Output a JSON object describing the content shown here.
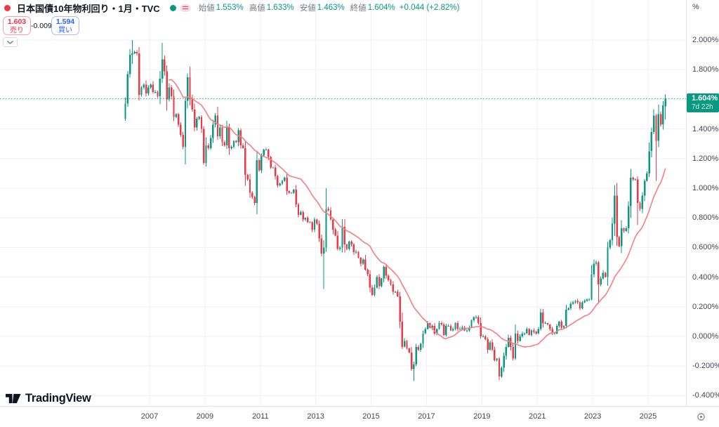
{
  "header": {
    "status_dot_color": "#f23645",
    "title": "日本国債10年物利回り・1月・TVC",
    "series_dot_color": "#089981",
    "ohlc": {
      "open_label": "始値",
      "open_value": "1.553%",
      "high_label": "高値",
      "high_value": "1.633%",
      "low_label": "安値",
      "low_value": "1.463%",
      "close_label": "終値",
      "close_value": "1.604%",
      "change_value": "+0.044 (+2.82%)"
    }
  },
  "trade_panel": {
    "sell_price": "1.603",
    "sell_label": "売り",
    "spread": "-0.009",
    "buy_price": "1.594",
    "buy_label": "買い"
  },
  "price_axis": {
    "unit": "%",
    "ticks": [
      "2.000%",
      "1.800%",
      "1.400%",
      "1.200%",
      "1.000%",
      "0.800%",
      "0.600%",
      "0.400%",
      "0.200%",
      "0.000%",
      "-0.200%",
      "-0.400%"
    ],
    "last_price": {
      "text": "1.604%",
      "countdown": "7d 22h",
      "bg": "#089981"
    }
  },
  "time_axis": {
    "years": [
      "2007",
      "2009",
      "2011",
      "2013",
      "2015",
      "2017",
      "2019",
      "2021",
      "2023",
      "2025"
    ]
  },
  "logo_text": "TradingView",
  "chart_data": {
    "type": "candlestick",
    "title": "日本国債10年物利回り・1月・TVC",
    "interval": "1 month",
    "unit": "%",
    "y_ticks": [
      2.0,
      1.8,
      1.6,
      1.4,
      1.2,
      1.0,
      0.8,
      0.6,
      0.4,
      0.2,
      0.0,
      -0.2,
      -0.4
    ],
    "x_tick_years": [
      2007,
      2009,
      2011,
      2013,
      2015,
      2017,
      2019,
      2021,
      2023,
      2025
    ],
    "current_price": 1.604,
    "up_color": "#089981",
    "down_color": "#f23645",
    "grid_color": "#f0f2f8",
    "price_line_color": "#089981",
    "ma": {
      "type": "SMA",
      "length": 20,
      "color": "#f77c83"
    },
    "start_month": "2006-02",
    "first_open": 1.47,
    "closes_by_year": {
      "2006": [
        1.57,
        1.77,
        1.9,
        1.91,
        1.92,
        1.91,
        1.63,
        1.68,
        1.7,
        1.64,
        1.68
      ],
      "2007": [
        1.7,
        1.65,
        1.65,
        1.62,
        1.74,
        1.87,
        1.79,
        1.6,
        1.68,
        1.62,
        1.48,
        1.5
      ],
      "2008": [
        1.43,
        1.36,
        1.28,
        1.59,
        1.75,
        1.6,
        1.53,
        1.41,
        1.47,
        1.48,
        1.4,
        1.17
      ],
      "2009": [
        1.29,
        1.27,
        1.34,
        1.43,
        1.49,
        1.35,
        1.41,
        1.31,
        1.29,
        1.41,
        1.27,
        1.28
      ],
      "2010": [
        1.32,
        1.31,
        1.39,
        1.29,
        1.27,
        1.09,
        1.06,
        0.97,
        0.94,
        0.9,
        1.19,
        1.12
      ],
      "2011": [
        1.22,
        1.26,
        1.26,
        1.21,
        1.14,
        1.14,
        1.08,
        1.02,
        1.03,
        1.05,
        1.07,
        0.98
      ],
      "2012": [
        0.97,
        0.97,
        0.99,
        0.89,
        0.82,
        0.84,
        0.79,
        0.8,
        0.77,
        0.77,
        0.72,
        0.79
      ],
      "2013": [
        0.76,
        0.66,
        0.56,
        0.6,
        0.86,
        0.85,
        0.79,
        0.72,
        0.68,
        0.59,
        0.6,
        0.74
      ],
      "2014": [
        0.62,
        0.59,
        0.64,
        0.62,
        0.57,
        0.57,
        0.53,
        0.49,
        0.52,
        0.45,
        0.42,
        0.33
      ],
      "2015": [
        0.28,
        0.33,
        0.4,
        0.34,
        0.39,
        0.47,
        0.41,
        0.38,
        0.35,
        0.3,
        0.3,
        0.27
      ],
      "2016": [
        0.1,
        -0.07,
        -0.03,
        -0.08,
        -0.11,
        -0.22,
        -0.19,
        -0.07,
        -0.09,
        -0.05,
        0.02,
        0.05
      ],
      "2017": [
        0.09,
        0.06,
        0.07,
        0.02,
        0.05,
        0.09,
        0.08,
        0.01,
        0.07,
        0.07,
        0.04,
        0.05
      ],
      "2018": [
        0.09,
        0.05,
        0.05,
        0.06,
        0.04,
        0.04,
        0.06,
        0.11,
        0.13,
        0.13,
        0.09,
        0.0
      ],
      "2019": [
        0.0,
        -0.02,
        -0.09,
        -0.04,
        -0.09,
        -0.16,
        -0.15,
        -0.27,
        -0.21,
        -0.13,
        -0.07,
        -0.01
      ],
      "2020": [
        -0.07,
        -0.15,
        0.02,
        -0.03,
        0.0,
        0.02,
        0.02,
        0.05,
        0.01,
        0.04,
        0.03,
        0.02
      ],
      "2021": [
        0.05,
        0.16,
        0.09,
        0.09,
        0.08,
        0.05,
        0.02,
        0.02,
        0.07,
        0.1,
        0.06,
        0.07
      ],
      "2022": [
        0.18,
        0.19,
        0.22,
        0.23,
        0.24,
        0.23,
        0.19,
        0.23,
        0.24,
        0.25,
        0.25,
        0.42
      ],
      "2023": [
        0.49,
        0.5,
        0.35,
        0.39,
        0.43,
        0.4,
        0.6,
        0.65,
        0.76,
        0.95,
        0.67,
        0.61
      ],
      "2024": [
        0.73,
        0.71,
        0.73,
        0.88,
        1.07,
        1.06,
        1.06,
        0.9,
        0.86,
        0.95,
        1.05,
        1.1
      ],
      "2025": [
        1.25,
        1.38,
        1.49,
        1.32,
        1.5,
        1.43,
        1.56,
        1.604
      ]
    },
    "ohlc_overrides": {
      "2006-05": [
        1.9,
        2.0,
        1.84,
        1.91
      ],
      "2007-06": [
        1.74,
        1.98,
        1.71,
        1.87
      ],
      "2008-06": [
        1.75,
        1.82,
        1.56,
        1.6
      ],
      "2008-12": [
        1.4,
        1.42,
        1.16,
        1.17
      ],
      "2013-04": [
        0.56,
        0.65,
        0.32,
        0.6
      ],
      "2013-05": [
        0.6,
        1.0,
        0.57,
        0.86
      ],
      "2016-07": [
        -0.22,
        -0.17,
        -0.3,
        -0.19
      ],
      "2019-08": [
        -0.15,
        -0.14,
        -0.295,
        -0.27
      ],
      "2020-03": [
        -0.15,
        0.08,
        -0.16,
        0.02
      ],
      "2022-12": [
        0.25,
        0.48,
        0.245,
        0.42
      ],
      "2023-03": [
        0.5,
        0.51,
        0.22,
        0.35
      ],
      "2024-08": [
        1.06,
        1.08,
        0.75,
        0.9
      ],
      "2025-04": [
        1.49,
        1.5,
        1.05,
        1.32
      ],
      "2025-08": [
        1.553,
        1.633,
        1.463,
        1.604
      ]
    }
  }
}
